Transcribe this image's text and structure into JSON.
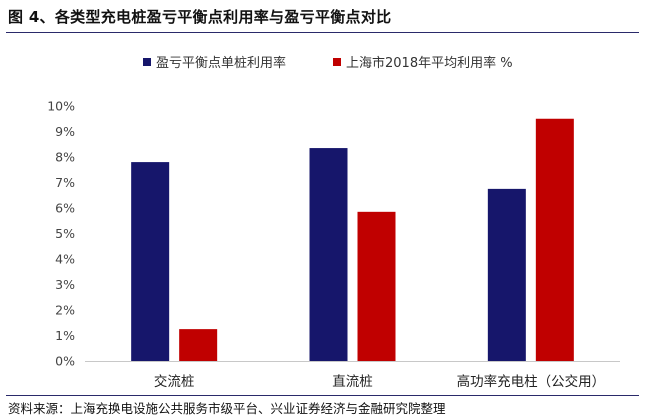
{
  "figure": {
    "title": "图 4、各类型充电桩盈亏平衡点利用率与盈亏平衡点对比",
    "source": "资料来源：上海充换电设施公共服务市级平台、兴业证券经济与金融研究院整理"
  },
  "chart_data": {
    "type": "bar",
    "categories": [
      "交流桩",
      "直流桩",
      "高功率充电柱（公交用）"
    ],
    "series": [
      {
        "name": "盈亏平衡点单桩利用率",
        "color": "#16166b",
        "values": [
          7.8,
          8.35,
          6.75
        ]
      },
      {
        "name": "上海市2018年平均利用率 %",
        "color": "#c00000",
        "values": [
          1.25,
          5.85,
          9.5
        ]
      }
    ],
    "y_ticks": [
      "0%",
      "1%",
      "2%",
      "3%",
      "4%",
      "5%",
      "6%",
      "7%",
      "8%",
      "9%",
      "10%"
    ],
    "ylim": [
      0,
      10
    ],
    "grid": false,
    "legend_position": "top"
  }
}
